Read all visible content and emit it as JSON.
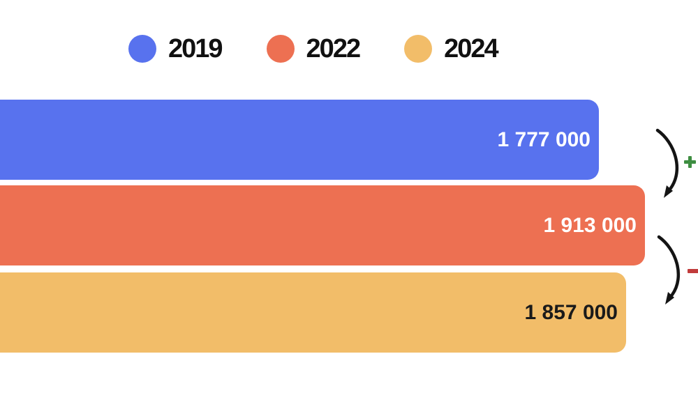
{
  "chart": {
    "background": "#FFFFFF",
    "legend": {
      "position": "top",
      "items": [
        {
          "label": "2019",
          "color": "#5872EE"
        },
        {
          "label": "2022",
          "color": "#ED7052"
        },
        {
          "label": "2024",
          "color": "#F2BD69"
        }
      ]
    }
  },
  "chart_data": {
    "type": "bar",
    "orientation": "horizontal",
    "title": "",
    "xlabel": "",
    "ylabel": "",
    "grid": false,
    "legend_position": "top",
    "bars_clipped_at_left_edge": true,
    "categories": [
      "2019",
      "2022",
      "2024"
    ],
    "values": [
      1777000,
      1913000,
      1857000
    ],
    "value_labels": [
      "1 777 000",
      "1 913 000",
      "1 857 000"
    ],
    "series_colors": [
      "#5872EE",
      "#ED7052",
      "#F2BD69"
    ],
    "value_label_colors": [
      "#FFFFFF",
      "#FFFFFF",
      "#1A1A1A"
    ],
    "arrow_color": "#141414",
    "annotations": [
      {
        "type": "curved-arrow",
        "from": "2019",
        "to": "2022",
        "sign": "+",
        "sign_color": "#3E8E41"
      },
      {
        "type": "curved-arrow",
        "from": "2022",
        "to": "2024",
        "sign": "-",
        "sign_color": "#C13B3B"
      }
    ]
  }
}
